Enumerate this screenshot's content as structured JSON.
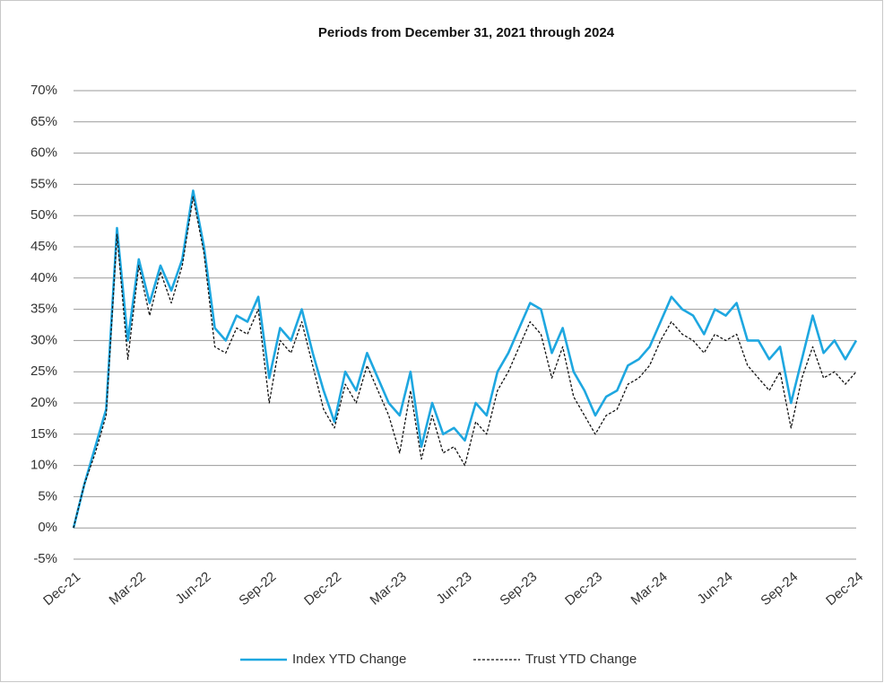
{
  "chart_data": {
    "type": "line",
    "title": "Periods from December 31, 2021 through 2024",
    "categories": [
      "Dec-21",
      null,
      null,
      null,
      null,
      null,
      "Mar-22",
      null,
      null,
      null,
      null,
      null,
      "Jun-22",
      null,
      null,
      null,
      null,
      null,
      "Sep-22",
      null,
      null,
      null,
      null,
      null,
      "Dec-22",
      null,
      null,
      null,
      null,
      null,
      "Mar-23",
      null,
      null,
      null,
      null,
      null,
      "Jun-23",
      null,
      null,
      null,
      null,
      null,
      "Sep-23",
      null,
      null,
      null,
      null,
      null,
      "Dec-23",
      null,
      null,
      null,
      null,
      null,
      "Mar-24",
      null,
      null,
      null,
      null,
      null,
      "Jun-24",
      null,
      null,
      null,
      null,
      null,
      "Sep-24",
      null,
      null,
      null,
      null,
      null,
      "Dec-24"
    ],
    "series": [
      {
        "name": "Index YTD Change",
        "color": "#1ea7e0",
        "dash": false,
        "values": [
          0,
          7,
          13,
          19,
          48,
          30,
          43,
          36,
          42,
          38,
          43,
          54,
          45,
          32,
          30,
          34,
          33,
          37,
          24,
          32,
          30,
          35,
          28,
          22,
          17,
          25,
          22,
          28,
          24,
          20,
          18,
          25,
          13,
          20,
          15,
          16,
          14,
          20,
          18,
          25,
          28,
          32,
          36,
          35,
          28,
          32,
          25,
          22,
          18,
          21,
          22,
          26,
          27,
          29,
          33,
          37,
          35,
          34,
          31,
          35,
          34,
          36,
          30,
          30,
          27,
          29,
          20,
          27,
          34,
          28,
          30,
          27,
          30
        ]
      },
      {
        "name": "Trust YTD Change",
        "color": "#111111",
        "dash": true,
        "values": [
          0,
          7,
          12,
          18,
          47,
          27,
          42,
          34,
          41,
          36,
          42,
          53,
          44,
          29,
          28,
          32,
          31,
          35,
          20,
          30,
          28,
          33,
          26,
          19,
          16,
          23,
          20,
          26,
          22,
          18,
          12,
          22,
          11,
          18,
          12,
          13,
          10,
          17,
          15,
          22,
          25,
          29,
          33,
          31,
          24,
          29,
          21,
          18,
          15,
          18,
          19,
          23,
          24,
          26,
          30,
          33,
          31,
          30,
          28,
          31,
          30,
          31,
          26,
          24,
          22,
          25,
          16,
          24,
          29,
          24,
          25,
          23,
          25
        ]
      }
    ],
    "ylim": [
      -5,
      70
    ],
    "yticks": [
      {
        "value": -5,
        "label": "-5%"
      },
      {
        "value": 0,
        "label": "0%"
      },
      {
        "value": 5,
        "label": "5%"
      },
      {
        "value": 10,
        "label": "10%"
      },
      {
        "value": 15,
        "label": "15%"
      },
      {
        "value": 20,
        "label": "20%"
      },
      {
        "value": 25,
        "label": "25%"
      },
      {
        "value": 30,
        "label": "30%"
      },
      {
        "value": 35,
        "label": "35%"
      },
      {
        "value": 40,
        "label": "40%"
      },
      {
        "value": 45,
        "label": "45%"
      },
      {
        "value": 50,
        "label": "50%"
      },
      {
        "value": 55,
        "label": "55%"
      },
      {
        "value": 60,
        "label": "60%"
      },
      {
        "value": 65,
        "label": "65%"
      },
      {
        "value": 70,
        "label": "70%"
      }
    ],
    "grid": true,
    "legend": "bottom"
  }
}
